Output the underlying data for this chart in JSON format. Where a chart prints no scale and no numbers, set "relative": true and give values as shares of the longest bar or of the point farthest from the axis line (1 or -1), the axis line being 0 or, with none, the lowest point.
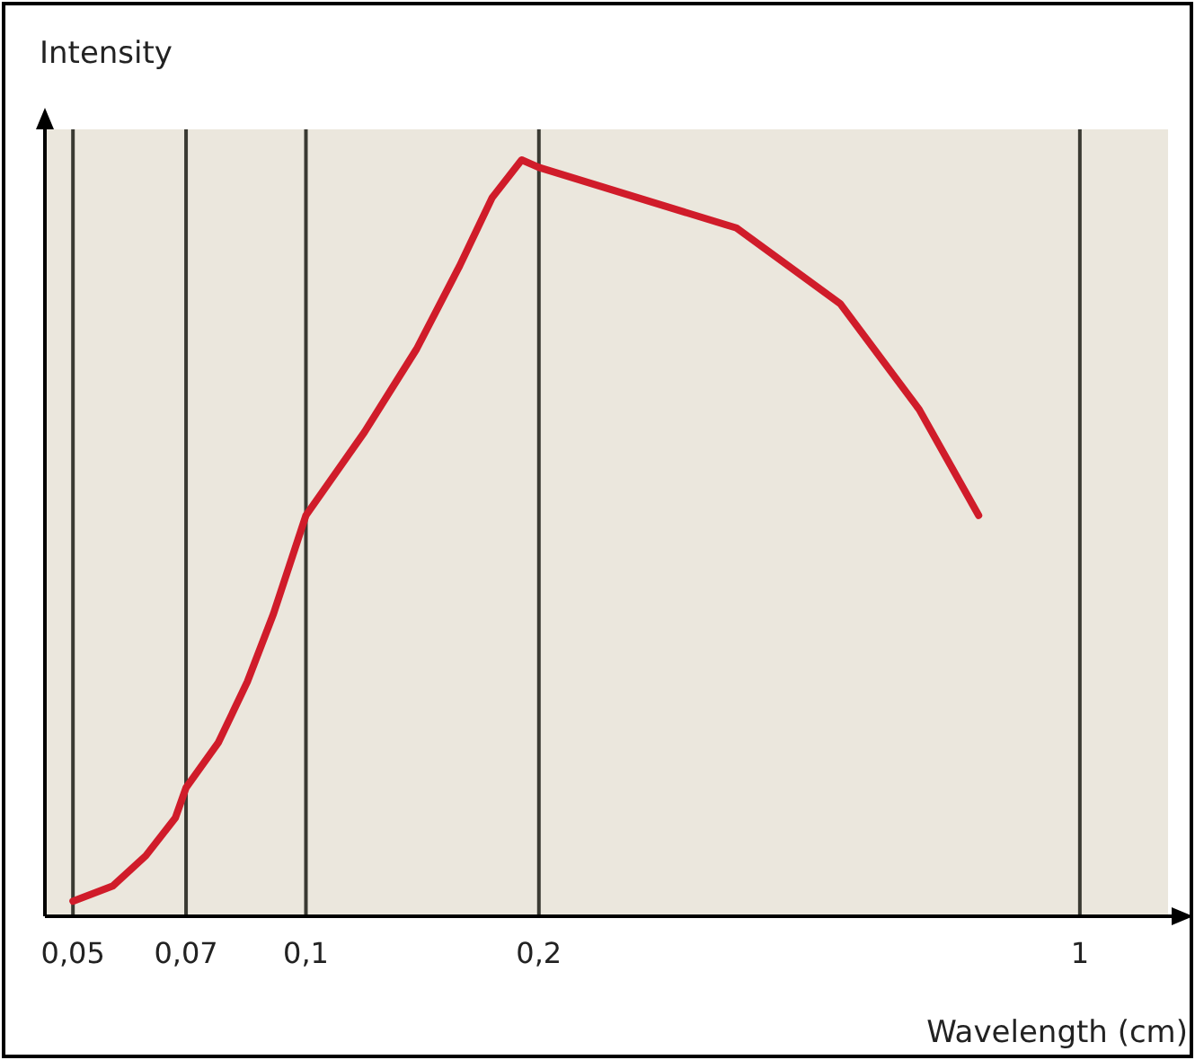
{
  "chart_data": {
    "type": "line",
    "relative": true,
    "ylabel": "Intensity",
    "xlabel": "Wavelength (cm)",
    "x": [
      0.05,
      0.0563,
      0.0621,
      0.0678,
      0.07,
      0.0771,
      0.084,
      0.0908,
      0.1,
      0.119,
      0.139,
      0.158,
      0.174,
      0.19,
      0.2,
      0.36,
      0.49,
      0.62,
      0.74
    ],
    "series": [
      {
        "color": "#d01c2a",
        "values": [
          0.02,
          0.04,
          0.08,
          0.13,
          0.17,
          0.23,
          0.31,
          0.4,
          0.53,
          0.64,
          0.75,
          0.86,
          0.95,
          1,
          0.99,
          0.91,
          0.81,
          0.67,
          0.53
        ]
      }
    ],
    "xlim": [
      0.046,
      1.3
    ],
    "log": "x",
    "xticks": [
      {
        "value": 0.05,
        "label": "0,05"
      },
      {
        "value": 0.07,
        "label": "0,07"
      },
      {
        "value": 0.1,
        "label": "0,1"
      },
      {
        "value": 0.2,
        "label": "0,2"
      },
      {
        "value": 1,
        "label": "1"
      }
    ],
    "grid": "x",
    "marker": "none",
    "line_style": "solid"
  }
}
